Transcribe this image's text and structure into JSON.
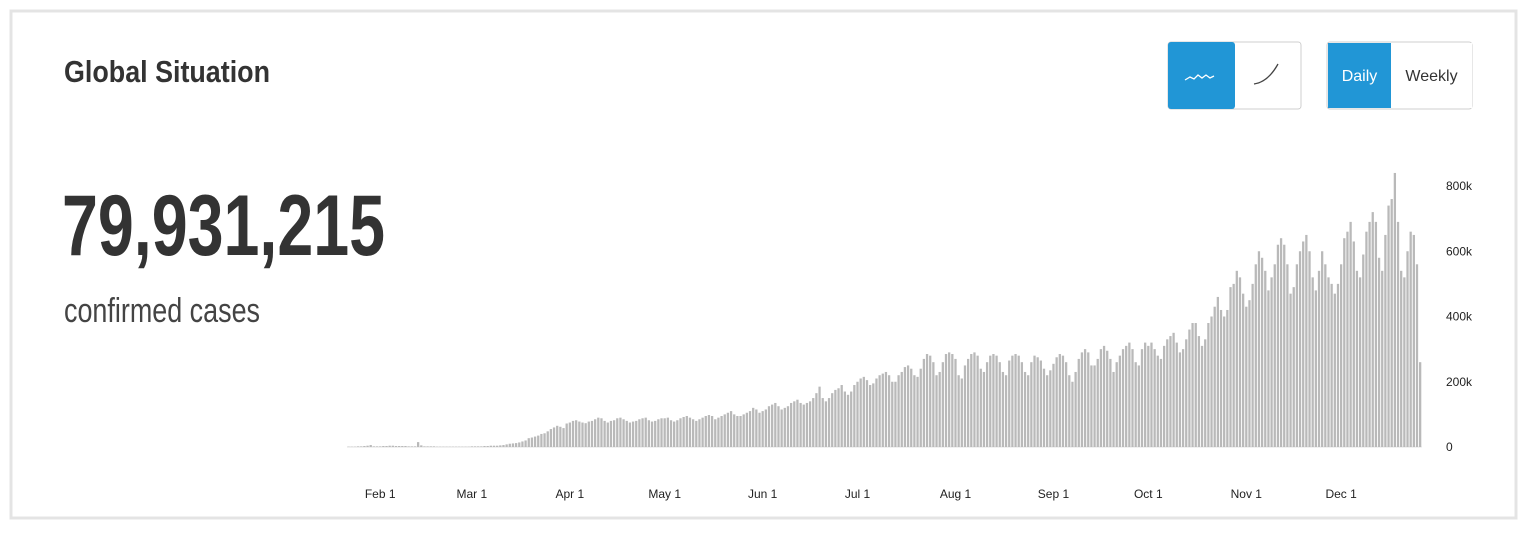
{
  "header": {
    "title": "Global Situation"
  },
  "summary": {
    "total": "79,931,215",
    "label": "confirmed cases"
  },
  "period": {
    "options": [
      "Daily",
      "Weekly"
    ],
    "active": 0
  },
  "chart_data": {
    "type": "bar",
    "color": "#b9b9b9",
    "categories": [
      null,
      null,
      null,
      null,
      null,
      null,
      null,
      null,
      null,
      null,
      "Feb 1",
      null,
      null,
      null,
      null,
      null,
      null,
      null,
      null,
      null,
      null,
      null,
      null,
      null,
      null,
      null,
      null,
      null,
      null,
      null,
      null,
      null,
      null,
      null,
      null,
      null,
      null,
      null,
      null,
      "Mar 1",
      null,
      null,
      null,
      null,
      null,
      null,
      null,
      null,
      null,
      null,
      null,
      null,
      null,
      null,
      null,
      null,
      null,
      null,
      null,
      null,
      null,
      null,
      null,
      null,
      null,
      null,
      null,
      null,
      null,
      null,
      "Apr 1",
      null,
      null,
      null,
      null,
      null,
      null,
      null,
      null,
      null,
      null,
      null,
      null,
      null,
      null,
      null,
      null,
      null,
      null,
      null,
      null,
      null,
      null,
      null,
      null,
      null,
      null,
      null,
      null,
      null,
      "May 1",
      null,
      null,
      null,
      null,
      null,
      null,
      null,
      null,
      null,
      null,
      null,
      null,
      null,
      null,
      null,
      null,
      null,
      null,
      null,
      null,
      null,
      null,
      null,
      null,
      null,
      null,
      null,
      null,
      null,
      null,
      "Jun 1",
      null,
      null,
      null,
      null,
      null,
      null,
      null,
      null,
      null,
      null,
      null,
      null,
      null,
      null,
      null,
      null,
      null,
      null,
      null,
      null,
      null,
      null,
      null,
      null,
      null,
      null,
      null,
      null,
      null,
      "Jul 1",
      null,
      null,
      null,
      null,
      null,
      null,
      null,
      null,
      null,
      null,
      null,
      null,
      null,
      null,
      null,
      null,
      null,
      null,
      null,
      null,
      null,
      null,
      null,
      null,
      null,
      null,
      null,
      null,
      null,
      null,
      "Aug 1",
      null,
      null,
      null,
      null,
      null,
      null,
      null,
      null,
      null,
      null,
      null,
      null,
      null,
      null,
      null,
      null,
      null,
      null,
      null,
      null,
      null,
      null,
      null,
      null,
      null,
      null,
      null,
      null,
      null,
      null,
      "Sep 1",
      null,
      null,
      null,
      null,
      null,
      null,
      null,
      null,
      null,
      null,
      null,
      null,
      null,
      null,
      null,
      null,
      null,
      null,
      null,
      null,
      null,
      null,
      null,
      null,
      null,
      null,
      null,
      null,
      null,
      "Oct 1",
      null,
      null,
      null,
      null,
      null,
      null,
      null,
      null,
      null,
      null,
      null,
      null,
      null,
      null,
      null,
      null,
      null,
      null,
      null,
      null,
      null,
      null,
      null,
      null,
      null,
      null,
      null,
      null,
      null,
      null,
      "Nov 1",
      null,
      null,
      null,
      null,
      null,
      null,
      null,
      null,
      null,
      null,
      null,
      null,
      null,
      null,
      null,
      null,
      null,
      null,
      null,
      null,
      null,
      null,
      null,
      null,
      null,
      null,
      null,
      null,
      null,
      "Dec 1",
      null,
      null,
      null,
      null,
      null,
      null,
      null,
      null,
      null,
      null,
      null,
      null,
      null,
      null,
      null,
      null,
      null,
      null,
      null,
      null,
      null,
      null,
      null,
      null,
      null
    ],
    "values": [
      1,
      1,
      1,
      2,
      2,
      3,
      4,
      6,
      2,
      2,
      2,
      3,
      3,
      4,
      4,
      3,
      3,
      3,
      3,
      2,
      2,
      2,
      15,
      5,
      2,
      2,
      2,
      2,
      1,
      1,
      1,
      1,
      1,
      1,
      1,
      1,
      1,
      1,
      1,
      2,
      2,
      2,
      2,
      3,
      3,
      4,
      4,
      4,
      5,
      6,
      8,
      10,
      11,
      12,
      14,
      17,
      20,
      27,
      29,
      32,
      35,
      40,
      42,
      48,
      55,
      60,
      65,
      62,
      58,
      72,
      75,
      80,
      82,
      78,
      75,
      73,
      78,
      80,
      85,
      90,
      88,
      80,
      75,
      80,
      82,
      88,
      90,
      85,
      80,
      75,
      78,
      80,
      85,
      88,
      90,
      82,
      78,
      80,
      85,
      88,
      88,
      90,
      82,
      78,
      82,
      88,
      92,
      95,
      90,
      85,
      80,
      85,
      90,
      95,
      98,
      95,
      85,
      90,
      95,
      100,
      105,
      110,
      100,
      95,
      95,
      100,
      105,
      110,
      120,
      115,
      105,
      110,
      115,
      125,
      130,
      135,
      125,
      115,
      120,
      125,
      135,
      140,
      145,
      135,
      130,
      135,
      140,
      150,
      165,
      185,
      150,
      140,
      150,
      165,
      175,
      180,
      190,
      170,
      160,
      170,
      190,
      200,
      210,
      215,
      205,
      190,
      195,
      210,
      220,
      225,
      230,
      220,
      200,
      200,
      220,
      230,
      245,
      250,
      240,
      220,
      215,
      240,
      270,
      285,
      280,
      260,
      220,
      230,
      260,
      285,
      290,
      285,
      270,
      220,
      210,
      250,
      270,
      285,
      290,
      280,
      240,
      230,
      260,
      280,
      285,
      280,
      260,
      230,
      220,
      265,
      280,
      285,
      280,
      260,
      230,
      220,
      260,
      280,
      275,
      265,
      240,
      220,
      235,
      255,
      275,
      285,
      280,
      260,
      220,
      200,
      230,
      270,
      290,
      300,
      290,
      250,
      250,
      270,
      300,
      310,
      295,
      270,
      230,
      260,
      280,
      300,
      310,
      320,
      300,
      260,
      250,
      300,
      320,
      310,
      320,
      300,
      280,
      270,
      310,
      330,
      340,
      350,
      320,
      290,
      300,
      330,
      360,
      380,
      380,
      340,
      310,
      330,
      380,
      400,
      430,
      460,
      420,
      400,
      420,
      490,
      500,
      540,
      520,
      470,
      430,
      450,
      500,
      560,
      600,
      580,
      540,
      480,
      520,
      560,
      620,
      640,
      620,
      560,
      470,
      490,
      560,
      600,
      630,
      650,
      600,
      520,
      480,
      540,
      600,
      560,
      520,
      500,
      470,
      500,
      560,
      640,
      660,
      690,
      630,
      540,
      520,
      590,
      660,
      690,
      720,
      690,
      580,
      540,
      650,
      740,
      760,
      840,
      690,
      540,
      520,
      600,
      660,
      650,
      560,
      260
    ],
    "ylim": [
      0,
      800
    ],
    "yticks": [
      0,
      {
        "value": 200,
        "label": "200k"
      },
      {
        "value": 400,
        "label": "400k"
      },
      {
        "value": 600,
        "label": "600k"
      },
      {
        "value": 800,
        "label": "800k"
      }
    ]
  }
}
